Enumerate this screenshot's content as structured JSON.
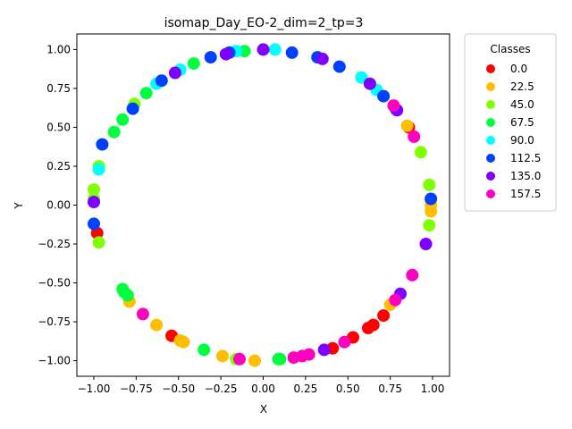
{
  "chart_data": {
    "type": "scatter",
    "title": "isomap_Day_EO-2_dim=2_tp=3",
    "xlabel": "X",
    "ylabel": "Y",
    "xlim": [
      -1.1,
      1.1
    ],
    "ylim": [
      -1.1,
      1.1
    ],
    "x_ticks": [
      "−1.00",
      "−0.75",
      "−0.50",
      "−0.25",
      "0.00",
      "0.25",
      "0.50",
      "0.75",
      "1.00"
    ],
    "y_ticks": [
      "−1.00",
      "−0.75",
      "−0.50",
      "−0.25",
      "0.00",
      "0.25",
      "0.50",
      "0.75",
      "1.00"
    ],
    "x_tick_values": [
      -1,
      -0.75,
      -0.5,
      -0.25,
      0,
      0.25,
      0.5,
      0.75,
      1
    ],
    "y_tick_values": [
      -1,
      -0.75,
      -0.5,
      -0.25,
      0,
      0.25,
      0.5,
      0.75,
      1
    ],
    "grid": false,
    "legend": {
      "title": "Classes",
      "placement": "outside-top-right",
      "entries": [
        "0.0",
        "22.5",
        "45.0",
        "67.5",
        "90.0",
        "112.5",
        "135.0",
        "157.5"
      ]
    },
    "colors": {
      "0.0": "#ff0000",
      "22.5": "#ffbf00",
      "45.0": "#80ff00",
      "67.5": "#00ff40",
      "90.0": "#00ffff",
      "112.5": "#0040ff",
      "135.0": "#8000ff",
      "157.5": "#ff00bf"
    },
    "series": [
      {
        "name": "0.0",
        "points": [
          [
            -0.98,
            -0.18
          ],
          [
            -0.54,
            -0.84
          ],
          [
            0.41,
            -0.92
          ],
          [
            0.53,
            -0.85
          ],
          [
            0.62,
            -0.79
          ],
          [
            0.65,
            -0.77
          ],
          [
            0.71,
            -0.71
          ],
          [
            0.86,
            0.5
          ]
        ]
      },
      {
        "name": "22.5",
        "points": [
          [
            -0.79,
            -0.62
          ],
          [
            -0.63,
            -0.77
          ],
          [
            -0.49,
            -0.87
          ],
          [
            -0.47,
            -0.88
          ],
          [
            -0.24,
            -0.97
          ],
          [
            -0.05,
            -1.0
          ],
          [
            0.75,
            -0.64
          ],
          [
            0.85,
            0.51
          ],
          [
            0.99,
            0.0
          ],
          [
            0.99,
            -0.04
          ]
        ]
      },
      {
        "name": "45.0",
        "points": [
          [
            -1.0,
            0.04
          ],
          [
            -1.0,
            0.1
          ],
          [
            -0.97,
            0.25
          ],
          [
            -0.97,
            -0.24
          ],
          [
            -0.76,
            0.65
          ],
          [
            -0.16,
            -0.99
          ],
          [
            0.93,
            0.34
          ],
          [
            0.98,
            0.13
          ],
          [
            0.98,
            -0.13
          ]
        ]
      },
      {
        "name": "67.5",
        "points": [
          [
            -0.88,
            0.47
          ],
          [
            -0.83,
            0.55
          ],
          [
            -0.83,
            -0.54
          ],
          [
            -0.82,
            -0.56
          ],
          [
            -0.8,
            -0.58
          ],
          [
            -0.69,
            0.72
          ],
          [
            -0.41,
            0.91
          ],
          [
            -0.35,
            -0.93
          ],
          [
            -0.11,
            0.99
          ],
          [
            0.09,
            -0.99
          ],
          [
            0.1,
            -0.99
          ],
          [
            0.78,
            0.62
          ]
        ]
      },
      {
        "name": "90.0",
        "points": [
          [
            -0.97,
            0.23
          ],
          [
            -0.63,
            0.78
          ],
          [
            -0.49,
            0.87
          ],
          [
            -0.16,
            0.99
          ],
          [
            0.07,
            1.0
          ],
          [
            0.58,
            0.82
          ],
          [
            0.67,
            0.74
          ]
        ]
      },
      {
        "name": "112.5",
        "points": [
          [
            -1.0,
            -0.12
          ],
          [
            -0.95,
            0.39
          ],
          [
            -0.77,
            0.62
          ],
          [
            -0.6,
            0.8
          ],
          [
            -0.31,
            0.95
          ],
          [
            -0.2,
            0.98
          ],
          [
            0.17,
            0.98
          ],
          [
            0.32,
            0.95
          ],
          [
            0.45,
            0.89
          ],
          [
            0.71,
            0.7
          ],
          [
            0.99,
            0.04
          ]
        ]
      },
      {
        "name": "135.0",
        "points": [
          [
            -1.0,
            0.02
          ],
          [
            -0.52,
            0.85
          ],
          [
            -0.22,
            0.97
          ],
          [
            0.0,
            1.0
          ],
          [
            0.35,
            0.94
          ],
          [
            0.63,
            0.78
          ],
          [
            0.79,
            0.61
          ],
          [
            0.81,
            -0.57
          ],
          [
            0.96,
            -0.25
          ],
          [
            0.36,
            -0.93
          ]
        ]
      },
      {
        "name": "157.5",
        "points": [
          [
            -0.71,
            -0.7
          ],
          [
            -0.14,
            -0.99
          ],
          [
            0.18,
            -0.98
          ],
          [
            0.23,
            -0.97
          ],
          [
            0.27,
            -0.96
          ],
          [
            0.48,
            -0.88
          ],
          [
            0.78,
            -0.61
          ],
          [
            0.77,
            0.64
          ],
          [
            0.89,
            0.44
          ],
          [
            0.88,
            -0.45
          ]
        ]
      }
    ]
  }
}
